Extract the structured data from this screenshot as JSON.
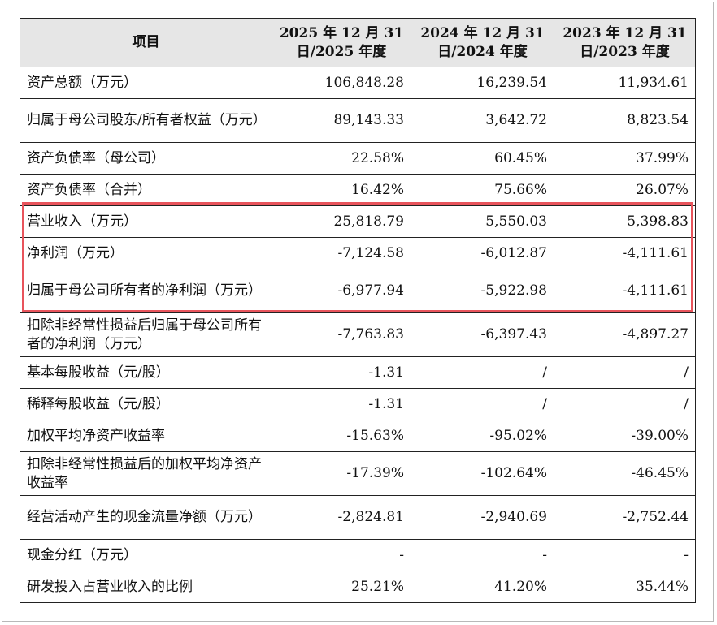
{
  "table": {
    "header": {
      "item": "项目",
      "col2025_line1": "2025 年 12 月 31",
      "col2025_line2": "日/2025 年度",
      "col2024_line1": "2024 年 12 月 31",
      "col2024_line2": "日/2024 年度",
      "col2023_line1": "2023 年 12 月 31",
      "col2023_line2": "日/2023 年度"
    },
    "rows": [
      {
        "label": "资产总额（万元）",
        "v2025": "106,848.28",
        "v2024": "16,239.54",
        "v2023": "11,934.61"
      },
      {
        "label": "归属于母公司股东/所有者权益（万元）",
        "v2025": "89,143.33",
        "v2024": "3,642.72",
        "v2023": "8,823.54"
      },
      {
        "label": "资产负债率（母公司）",
        "v2025": "22.58%",
        "v2024": "60.45%",
        "v2023": "37.99%"
      },
      {
        "label": "资产负债率（合并）",
        "v2025": "16.42%",
        "v2024": "75.66%",
        "v2023": "26.07%"
      },
      {
        "label": "营业收入（万元）",
        "v2025": "25,818.79",
        "v2024": "5,550.03",
        "v2023": "5,398.83"
      },
      {
        "label": "净利润（万元）",
        "v2025": "-7,124.58",
        "v2024": "-6,012.87",
        "v2023": "-4,111.61"
      },
      {
        "label": "归属于母公司所有者的净利润（万元）",
        "v2025": "-6,977.94",
        "v2024": "-5,922.98",
        "v2023": "-4,111.61"
      },
      {
        "label": "扣除非经常性损益后归属于母公司所有者的净利润（万元）",
        "v2025": "-7,763.83",
        "v2024": "-6,397.43",
        "v2023": "-4,897.27"
      },
      {
        "label": "基本每股收益（元/股）",
        "v2025": "-1.31",
        "v2024": "/",
        "v2023": "/"
      },
      {
        "label": "稀释每股收益（元/股）",
        "v2025": "-1.31",
        "v2024": "/",
        "v2023": "/"
      },
      {
        "label": "加权平均净资产收益率",
        "v2025": "-15.63%",
        "v2024": "-95.02%",
        "v2023": "-39.00%"
      },
      {
        "label": "扣除非经常性损益后的加权平均净资产收益率",
        "v2025": "-17.39%",
        "v2024": "-102.64%",
        "v2023": "-46.45%"
      },
      {
        "label": "经营活动产生的现金流量净额（万元）",
        "v2025": "-2,824.81",
        "v2024": "-2,940.69",
        "v2023": "-2,752.44"
      },
      {
        "label": "现金分红（万元）",
        "v2025": "-",
        "v2024": "-",
        "v2023": "-"
      },
      {
        "label": "研发投入占营业收入的比例",
        "v2025": "25.21%",
        "v2024": "41.20%",
        "v2023": "35.44%"
      }
    ]
  },
  "highlight": {
    "color": "#e8545c"
  }
}
